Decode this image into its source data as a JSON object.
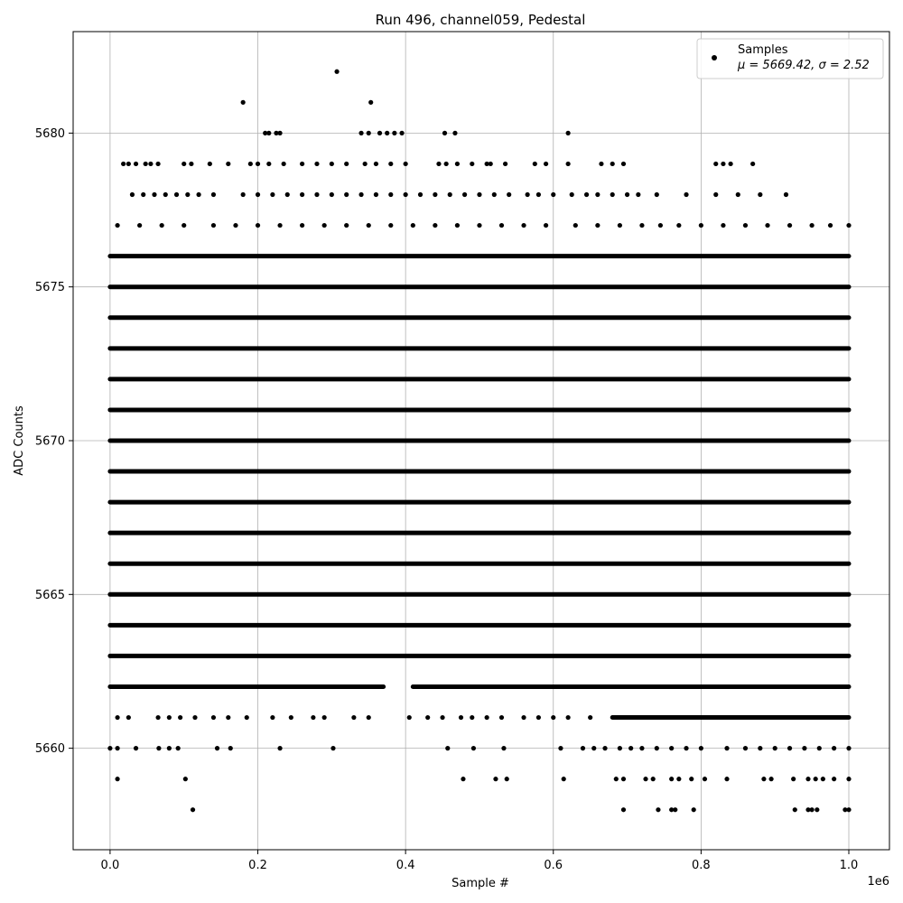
{
  "chart_data": {
    "type": "scatter",
    "title": "Run 496, channel059, Pedestal",
    "xlabel": "Sample #",
    "ylabel": "ADC Counts",
    "x_offset_text": "1e6",
    "xlim": [
      -0.05,
      1.055
    ],
    "ylim": [
      5656.7,
      5683.3
    ],
    "x_ticks": [
      0.0,
      0.2,
      0.4,
      0.6,
      0.8,
      1.0
    ],
    "x_tick_labels": [
      "0.0",
      "0.2",
      "0.4",
      "0.6",
      "0.8",
      "1.0"
    ],
    "y_ticks": [
      5660,
      5665,
      5670,
      5675,
      5680
    ],
    "y_tick_labels": [
      "5660",
      "5665",
      "5670",
      "5675",
      "5680"
    ],
    "grid": true,
    "legend": {
      "placement": "top-right",
      "entries": [
        {
          "label": "Samples",
          "stats": "μ = 5669.42, σ = 2.52",
          "color": "#000000"
        }
      ]
    },
    "point_color": "#000000",
    "bands": [
      {
        "y": 5676,
        "segments": [
          [
            0.0,
            1.0
          ]
        ]
      },
      {
        "y": 5675,
        "segments": [
          [
            0.0,
            1.0
          ]
        ]
      },
      {
        "y": 5674,
        "segments": [
          [
            0.0,
            1.0
          ]
        ]
      },
      {
        "y": 5673,
        "segments": [
          [
            0.0,
            1.0
          ]
        ]
      },
      {
        "y": 5672,
        "segments": [
          [
            0.0,
            1.0
          ]
        ]
      },
      {
        "y": 5671,
        "segments": [
          [
            0.0,
            1.0
          ]
        ]
      },
      {
        "y": 5670,
        "segments": [
          [
            0.0,
            1.0
          ]
        ]
      },
      {
        "y": 5669,
        "segments": [
          [
            0.0,
            1.0
          ]
        ]
      },
      {
        "y": 5668,
        "segments": [
          [
            0.0,
            1.0
          ]
        ]
      },
      {
        "y": 5667,
        "segments": [
          [
            0.0,
            1.0
          ]
        ]
      },
      {
        "y": 5666,
        "segments": [
          [
            0.0,
            1.0
          ]
        ]
      },
      {
        "y": 5665,
        "segments": [
          [
            0.0,
            1.0
          ]
        ]
      },
      {
        "y": 5664,
        "segments": [
          [
            0.0,
            1.0
          ]
        ]
      },
      {
        "y": 5663,
        "segments": [
          [
            0.0,
            1.0
          ]
        ]
      },
      {
        "y": 5662,
        "segments": [
          [
            0.0,
            0.37
          ],
          [
            0.41,
            1.0
          ]
        ]
      },
      {
        "y": 5661,
        "segments": [
          [
            0.68,
            1.0
          ]
        ]
      }
    ],
    "points": [
      [
        0.307,
        5682
      ],
      [
        0.18,
        5681
      ],
      [
        0.353,
        5681
      ],
      [
        0.21,
        5680
      ],
      [
        0.215,
        5680
      ],
      [
        0.225,
        5680
      ],
      [
        0.23,
        5680
      ],
      [
        0.34,
        5680
      ],
      [
        0.35,
        5680
      ],
      [
        0.365,
        5680
      ],
      [
        0.375,
        5680
      ],
      [
        0.385,
        5680
      ],
      [
        0.395,
        5680
      ],
      [
        0.453,
        5680
      ],
      [
        0.467,
        5680
      ],
      [
        0.62,
        5680
      ],
      [
        0.018,
        5679
      ],
      [
        0.025,
        5679
      ],
      [
        0.035,
        5679
      ],
      [
        0.048,
        5679
      ],
      [
        0.055,
        5679
      ],
      [
        0.065,
        5679
      ],
      [
        0.1,
        5679
      ],
      [
        0.11,
        5679
      ],
      [
        0.135,
        5679
      ],
      [
        0.16,
        5679
      ],
      [
        0.19,
        5679
      ],
      [
        0.2,
        5679
      ],
      [
        0.215,
        5679
      ],
      [
        0.235,
        5679
      ],
      [
        0.26,
        5679
      ],
      [
        0.28,
        5679
      ],
      [
        0.3,
        5679
      ],
      [
        0.32,
        5679
      ],
      [
        0.345,
        5679
      ],
      [
        0.36,
        5679
      ],
      [
        0.38,
        5679
      ],
      [
        0.4,
        5679
      ],
      [
        0.445,
        5679
      ],
      [
        0.455,
        5679
      ],
      [
        0.47,
        5679
      ],
      [
        0.49,
        5679
      ],
      [
        0.51,
        5679
      ],
      [
        0.515,
        5679
      ],
      [
        0.535,
        5679
      ],
      [
        0.575,
        5679
      ],
      [
        0.59,
        5679
      ],
      [
        0.62,
        5679
      ],
      [
        0.665,
        5679
      ],
      [
        0.68,
        5679
      ],
      [
        0.695,
        5679
      ],
      [
        0.82,
        5679
      ],
      [
        0.83,
        5679
      ],
      [
        0.84,
        5679
      ],
      [
        0.87,
        5679
      ],
      [
        0.03,
        5678
      ],
      [
        0.045,
        5678
      ],
      [
        0.06,
        5678
      ],
      [
        0.075,
        5678
      ],
      [
        0.09,
        5678
      ],
      [
        0.105,
        5678
      ],
      [
        0.12,
        5678
      ],
      [
        0.14,
        5678
      ],
      [
        0.18,
        5678
      ],
      [
        0.2,
        5678
      ],
      [
        0.22,
        5678
      ],
      [
        0.24,
        5678
      ],
      [
        0.26,
        5678
      ],
      [
        0.28,
        5678
      ],
      [
        0.3,
        5678
      ],
      [
        0.32,
        5678
      ],
      [
        0.34,
        5678
      ],
      [
        0.36,
        5678
      ],
      [
        0.38,
        5678
      ],
      [
        0.4,
        5678
      ],
      [
        0.42,
        5678
      ],
      [
        0.44,
        5678
      ],
      [
        0.46,
        5678
      ],
      [
        0.48,
        5678
      ],
      [
        0.5,
        5678
      ],
      [
        0.52,
        5678
      ],
      [
        0.54,
        5678
      ],
      [
        0.565,
        5678
      ],
      [
        0.58,
        5678
      ],
      [
        0.6,
        5678
      ],
      [
        0.625,
        5678
      ],
      [
        0.645,
        5678
      ],
      [
        0.66,
        5678
      ],
      [
        0.68,
        5678
      ],
      [
        0.7,
        5678
      ],
      [
        0.715,
        5678
      ],
      [
        0.74,
        5678
      ],
      [
        0.78,
        5678
      ],
      [
        0.82,
        5678
      ],
      [
        0.85,
        5678
      ],
      [
        0.88,
        5678
      ],
      [
        0.915,
        5678
      ],
      [
        0.01,
        5677
      ],
      [
        0.04,
        5677
      ],
      [
        0.07,
        5677
      ],
      [
        0.1,
        5677
      ],
      [
        0.14,
        5677
      ],
      [
        0.17,
        5677
      ],
      [
        0.2,
        5677
      ],
      [
        0.23,
        5677
      ],
      [
        0.26,
        5677
      ],
      [
        0.29,
        5677
      ],
      [
        0.32,
        5677
      ],
      [
        0.35,
        5677
      ],
      [
        0.38,
        5677
      ],
      [
        0.41,
        5677
      ],
      [
        0.44,
        5677
      ],
      [
        0.47,
        5677
      ],
      [
        0.5,
        5677
      ],
      [
        0.53,
        5677
      ],
      [
        0.56,
        5677
      ],
      [
        0.59,
        5677
      ],
      [
        0.63,
        5677
      ],
      [
        0.66,
        5677
      ],
      [
        0.69,
        5677
      ],
      [
        0.72,
        5677
      ],
      [
        0.745,
        5677
      ],
      [
        0.77,
        5677
      ],
      [
        0.8,
        5677
      ],
      [
        0.83,
        5677
      ],
      [
        0.86,
        5677
      ],
      [
        0.89,
        5677
      ],
      [
        0.92,
        5677
      ],
      [
        0.95,
        5677
      ],
      [
        0.975,
        5677
      ],
      [
        1.0,
        5677
      ],
      [
        0.01,
        5661
      ],
      [
        0.025,
        5661
      ],
      [
        0.065,
        5661
      ],
      [
        0.08,
        5661
      ],
      [
        0.095,
        5661
      ],
      [
        0.115,
        5661
      ],
      [
        0.14,
        5661
      ],
      [
        0.16,
        5661
      ],
      [
        0.185,
        5661
      ],
      [
        0.22,
        5661
      ],
      [
        0.245,
        5661
      ],
      [
        0.275,
        5661
      ],
      [
        0.29,
        5661
      ],
      [
        0.33,
        5661
      ],
      [
        0.35,
        5661
      ],
      [
        0.405,
        5661
      ],
      [
        0.43,
        5661
      ],
      [
        0.45,
        5661
      ],
      [
        0.475,
        5661
      ],
      [
        0.49,
        5661
      ],
      [
        0.51,
        5661
      ],
      [
        0.53,
        5661
      ],
      [
        0.56,
        5661
      ],
      [
        0.58,
        5661
      ],
      [
        0.6,
        5661
      ],
      [
        0.62,
        5661
      ],
      [
        0.65,
        5661
      ],
      [
        0.0,
        5660
      ],
      [
        0.01,
        5660
      ],
      [
        0.035,
        5660
      ],
      [
        0.066,
        5660
      ],
      [
        0.08,
        5660
      ],
      [
        0.092,
        5660
      ],
      [
        0.145,
        5660
      ],
      [
        0.163,
        5660
      ],
      [
        0.23,
        5660
      ],
      [
        0.302,
        5660
      ],
      [
        0.457,
        5660
      ],
      [
        0.492,
        5660
      ],
      [
        0.533,
        5660
      ],
      [
        0.61,
        5660
      ],
      [
        0.64,
        5660
      ],
      [
        0.655,
        5660
      ],
      [
        0.67,
        5660
      ],
      [
        0.69,
        5660
      ],
      [
        0.705,
        5660
      ],
      [
        0.72,
        5660
      ],
      [
        0.74,
        5660
      ],
      [
        0.76,
        5660
      ],
      [
        0.78,
        5660
      ],
      [
        0.8,
        5660
      ],
      [
        0.835,
        5660
      ],
      [
        0.86,
        5660
      ],
      [
        0.88,
        5660
      ],
      [
        0.9,
        5660
      ],
      [
        0.92,
        5660
      ],
      [
        0.94,
        5660
      ],
      [
        0.96,
        5660
      ],
      [
        0.98,
        5660
      ],
      [
        1.0,
        5660
      ],
      [
        0.01,
        5659
      ],
      [
        0.102,
        5659
      ],
      [
        0.478,
        5659
      ],
      [
        0.522,
        5659
      ],
      [
        0.537,
        5659
      ],
      [
        0.614,
        5659
      ],
      [
        0.685,
        5659
      ],
      [
        0.695,
        5659
      ],
      [
        0.725,
        5659
      ],
      [
        0.735,
        5659
      ],
      [
        0.76,
        5659
      ],
      [
        0.77,
        5659
      ],
      [
        0.787,
        5659
      ],
      [
        0.805,
        5659
      ],
      [
        0.835,
        5659
      ],
      [
        0.885,
        5659
      ],
      [
        0.895,
        5659
      ],
      [
        0.925,
        5659
      ],
      [
        0.945,
        5659
      ],
      [
        0.955,
        5659
      ],
      [
        0.965,
        5659
      ],
      [
        0.98,
        5659
      ],
      [
        1.0,
        5659
      ],
      [
        0.112,
        5658
      ],
      [
        0.695,
        5658
      ],
      [
        0.742,
        5658
      ],
      [
        0.76,
        5658
      ],
      [
        0.765,
        5658
      ],
      [
        0.79,
        5658
      ],
      [
        0.927,
        5658
      ],
      [
        0.945,
        5658
      ],
      [
        0.95,
        5658
      ],
      [
        0.957,
        5658
      ],
      [
        0.995,
        5658
      ],
      [
        1.0,
        5658
      ]
    ]
  }
}
